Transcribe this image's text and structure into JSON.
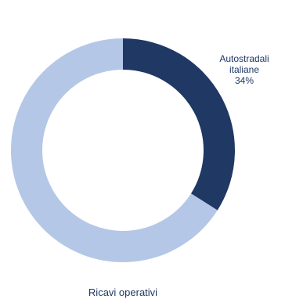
{
  "chart_data": {
    "type": "pie",
    "donut": true,
    "caption": "Ricavi operativi",
    "slices": [
      {
        "label_lines": [
          "Autostradali",
          "italiane",
          "34%"
        ],
        "value": 34,
        "color": "#1f3864"
      },
      {
        "label_lines": [],
        "value": 66,
        "color": "#b4c7e7"
      }
    ]
  }
}
